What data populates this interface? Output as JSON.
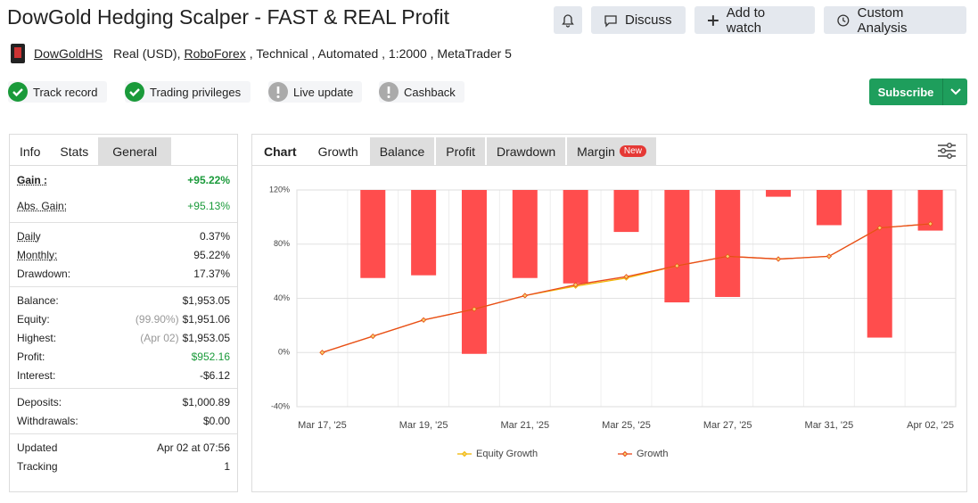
{
  "header": {
    "title": "DowGold Hedging Scalper - FAST & REAL Profit",
    "buttons": [
      "Discuss",
      "Add to watch",
      "Custom Analysis"
    ],
    "account": "DowGoldHS",
    "details_1": "Real (USD),",
    "broker": "RoboForex",
    "details_2": ", Technical , Automated , 1:2000 , MetaTrader 5",
    "badges": [
      "Track record",
      "Trading privileges",
      "Live update",
      "Cashback"
    ],
    "subscribe": "Subscribe"
  },
  "stats": {
    "tabs": [
      "Info",
      "Stats",
      "General"
    ],
    "rows": [
      {
        "label": "Gain :",
        "value": "+95.22%"
      },
      {
        "label": "Abs. Gain:",
        "value": "+95.13%"
      },
      {
        "label": "Daily",
        "value": "0.37%"
      },
      {
        "label": "Monthly:",
        "value": "95.22%"
      },
      {
        "label": "Drawdown:",
        "value": "17.37%"
      },
      {
        "label": "Balance:",
        "value": "$1,953.05"
      },
      {
        "label": "Equity:",
        "note": "(99.90%)",
        "value": "$1,951.06"
      },
      {
        "label": "Highest:",
        "note": "(Apr 02)",
        "value": "$1,953.05"
      },
      {
        "label": "Profit:",
        "value": "$952.16"
      },
      {
        "label": "Interest:",
        "value": "-$6.12"
      },
      {
        "label": "Deposits:",
        "value": "$1,000.89"
      },
      {
        "label": "Withdrawals:",
        "value": "$0.00"
      },
      {
        "label": "Updated",
        "value": "Apr 02 at 07:56"
      },
      {
        "label": "Tracking",
        "value": "1"
      }
    ]
  },
  "chart_tabs": {
    "tabs": [
      "Chart",
      "Growth",
      "Balance",
      "Profit",
      "Drawdown",
      "Margin"
    ],
    "badge": "New"
  },
  "chart_data": {
    "type": "bar-line",
    "categories": [
      "Mar 17, '25",
      null,
      "Mar 19, '25",
      null,
      "Mar 21, '25",
      null,
      "Mar 25, '25",
      null,
      "Mar 27, '25",
      null,
      "Mar 31, '25",
      null,
      "Apr 02, '25"
    ],
    "bars": {
      "color": "#ff4d4d",
      "values": [
        null,
        55,
        57,
        -1,
        55,
        51,
        89,
        37,
        41,
        115,
        94,
        11,
        90
      ]
    },
    "series": [
      {
        "name": "Equity Growth",
        "color": "#f2b705",
        "values": [
          0,
          12,
          24,
          32,
          42,
          49,
          55,
          64,
          71,
          69,
          71,
          92,
          95
        ]
      },
      {
        "name": "Growth",
        "color": "#e8491d",
        "values": [
          0,
          12,
          24,
          32,
          42,
          50,
          56,
          64,
          71,
          69,
          71,
          92,
          95
        ]
      }
    ],
    "ylim": [
      -40,
      120
    ],
    "yticks": [
      {
        "value": -40,
        "label": "-40%"
      },
      {
        "value": 0,
        "label": "0%"
      },
      {
        "value": 40,
        "label": "40%"
      },
      {
        "value": 80,
        "label": "80%"
      },
      {
        "value": 120,
        "label": "120%"
      }
    ],
    "grid": true
  }
}
